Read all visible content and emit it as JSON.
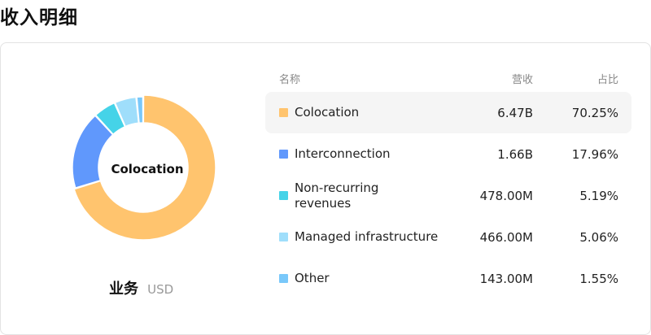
{
  "page": {
    "title": "收入明细"
  },
  "segment": {
    "name": "业务",
    "unit": "USD",
    "selected": "Colocation"
  },
  "table": {
    "headers": {
      "name": "名称",
      "revenue": "营收",
      "share": "占比"
    },
    "rows": [
      {
        "name": "Colocation",
        "revenue": "6.47B",
        "share": "70.25%",
        "percent": 70.25,
        "color": "#FFC46E"
      },
      {
        "name": "Interconnection",
        "revenue": "1.66B",
        "share": "17.96%",
        "percent": 17.96,
        "color": "#6098FC"
      },
      {
        "name": "Non-recurring revenues",
        "revenue": "478.00M",
        "share": "5.19%",
        "percent": 5.19,
        "color": "#45D3E8"
      },
      {
        "name": "Managed infrastructure",
        "revenue": "466.00M",
        "share": "5.06%",
        "percent": 5.06,
        "color": "#9FDEFB"
      },
      {
        "name": "Other",
        "revenue": "143.00M",
        "share": "1.55%",
        "percent": 1.55,
        "color": "#79C8FA"
      }
    ]
  }
}
